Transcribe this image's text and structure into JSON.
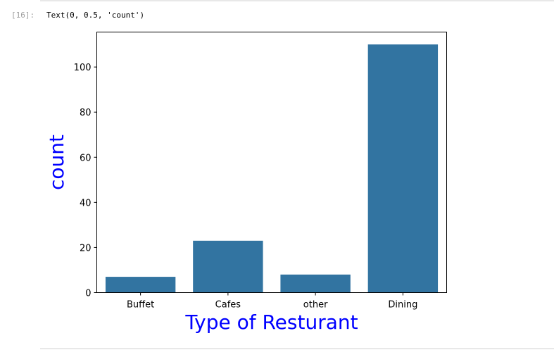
{
  "cell": {
    "prompt": "[16]:",
    "output_text": "Text(0, 0.5, 'count')"
  },
  "colors": {
    "bar": "#3274a1",
    "label": "#0000ff",
    "axis": "#000000"
  },
  "chart_data": {
    "type": "bar",
    "categories": [
      "Buffet",
      "Cafes",
      "other",
      "Dining"
    ],
    "values": [
      7,
      23,
      8,
      110
    ],
    "xlabel": "Type of Resturant",
    "ylabel": "count",
    "ylim": [
      0,
      115.5
    ],
    "yticks": [
      0,
      20,
      40,
      60,
      80,
      100
    ],
    "grid": false
  }
}
